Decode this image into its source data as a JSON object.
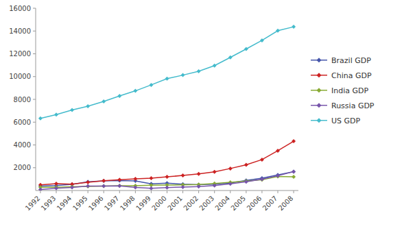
{
  "chart_data": {
    "type": "line",
    "x": [
      1992,
      1993,
      1994,
      1995,
      1996,
      1997,
      1998,
      1999,
      2000,
      2001,
      2002,
      2003,
      2004,
      2005,
      2006,
      2007,
      2008
    ],
    "series": [
      {
        "name": "Brazil GDP",
        "color": "#4455aa",
        "values": [
          387,
          429,
          546,
          770,
          840,
          872,
          843,
          587,
          644,
          554,
          504,
          552,
          663,
          882,
          1089,
          1367,
          1653
        ]
      },
      {
        "name": "China GDP",
        "color": "#cc2222",
        "values": [
          490,
          600,
          559,
          728,
          856,
          952,
          1019,
          1083,
          1198,
          1325,
          1454,
          1641,
          1932,
          2257,
          2713,
          3494,
          4327
        ]
      },
      {
        "name": "India GDP",
        "color": "#88aa33",
        "values": [
          289,
          279,
          333,
          367,
          392,
          422,
          428,
          459,
          477,
          494,
          524,
          619,
          722,
          834,
          949,
          1238,
          1210
        ]
      },
      {
        "name": "Russia GDP",
        "color": "#7755aa",
        "values": [
          85,
          195,
          278,
          395,
          392,
          405,
          270,
          196,
          260,
          307,
          345,
          431,
          591,
          764,
          990,
          1300,
          1661
        ]
      },
      {
        "name": "US GDP",
        "color": "#44bbcc",
        "values": [
          6337,
          6657,
          7072,
          7397,
          7816,
          8304,
          8747,
          9268,
          9817,
          10128,
          10470,
          10961,
          11686,
          12422,
          13178,
          14028,
          14369
        ]
      }
    ],
    "marker": "diamond",
    "xlim": [
      1991.7,
      2008.3
    ],
    "xticks": [
      1992,
      1993,
      1994,
      1995,
      1996,
      1997,
      1998,
      1999,
      2000,
      2001,
      2002,
      2003,
      2004,
      2005,
      2006,
      2007,
      2008
    ],
    "ylim": [
      0,
      16000
    ],
    "yticks": [
      2000,
      4000,
      6000,
      8000,
      10000,
      12000,
      14000,
      16000
    ],
    "grid": false,
    "legend": "right"
  }
}
